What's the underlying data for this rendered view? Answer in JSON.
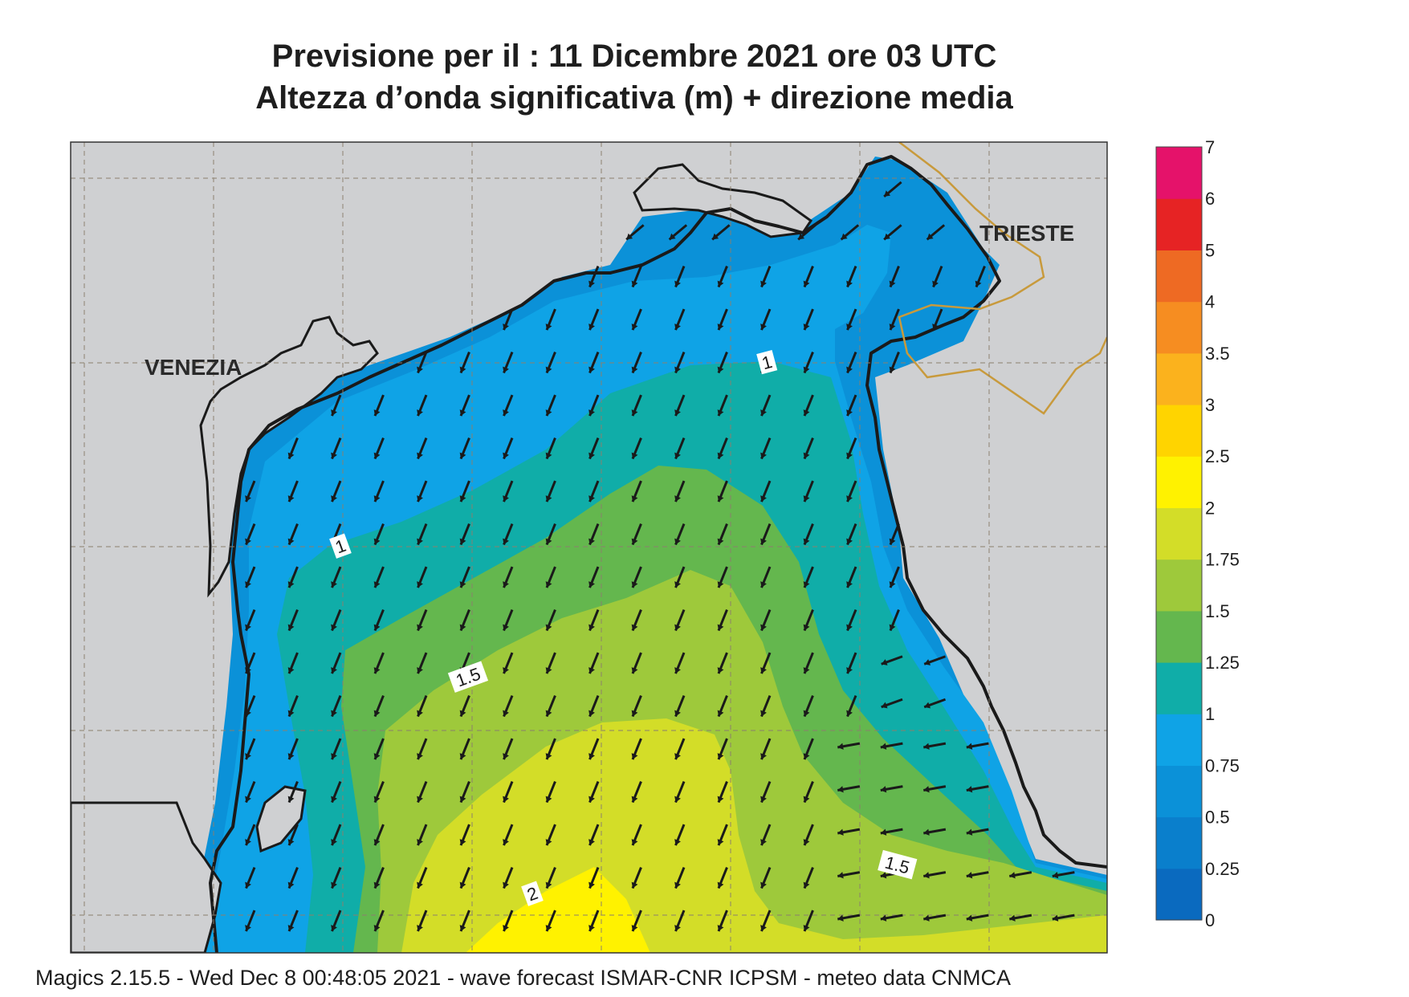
{
  "title_line1": "Previsione per il  :  11 Dicembre  2021   ore 03 UTC",
  "title_line2": "Altezza d’onda significativa (m) + direzione media",
  "footer": "Magics 2.15.5 - Wed Dec  8 00:48:05 2021 - wave forecast  ISMAR-CNR  ICPSM - meteo data   CNMCA",
  "cities": {
    "venezia": "VENEZIA",
    "trieste": "TRIESTE"
  },
  "contour_labels": [
    {
      "id": "c1a",
      "text": "1"
    },
    {
      "id": "c1b",
      "text": "1"
    },
    {
      "id": "c15a",
      "text": "1.5"
    },
    {
      "id": "c15b",
      "text": "1.5"
    },
    {
      "id": "c2",
      "text": "2"
    }
  ],
  "legend": {
    "levels": [
      "0",
      "0.25",
      "0.5",
      "0.75",
      "1",
      "1.25",
      "1.5",
      "1.75",
      "2",
      "2.5",
      "3",
      "3.5",
      "4",
      "5",
      "6",
      "7"
    ],
    "colors": [
      "#0a6abf",
      "#0a7fcc",
      "#0b91d8",
      "#0fa3e6",
      "#10ada8",
      "#64b74e",
      "#9ec93b",
      "#d3dd28",
      "#fff200",
      "#ffd400",
      "#fbb21d",
      "#f68d21",
      "#ee6a23",
      "#e62324",
      "#e5126a"
    ]
  },
  "colors": {
    "land": "#cfd0d2",
    "coast": "#1a1a1a",
    "border": "#c89a3c",
    "arrow": "#1a1a1a",
    "grid": "#8c7f6e"
  }
}
